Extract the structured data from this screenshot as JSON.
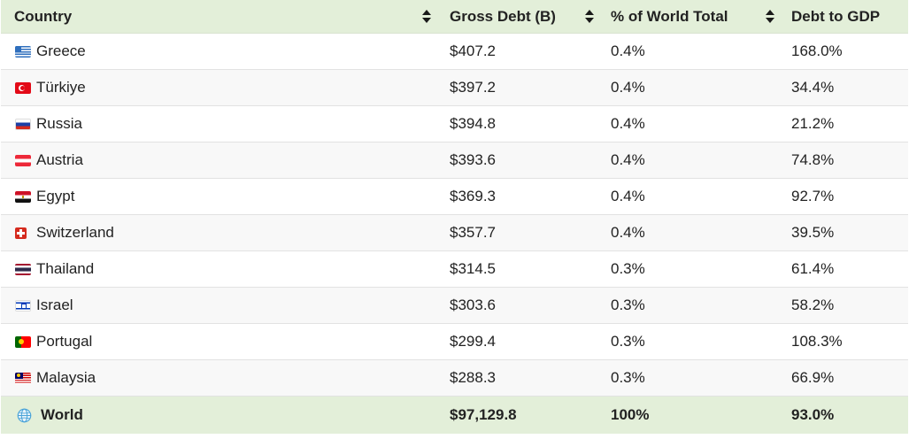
{
  "headers": {
    "country": "Country",
    "gross_debt": "Gross Debt (B)",
    "pct_world": "% of World Total",
    "debt_gdp": "Debt to GDP"
  },
  "rows": [
    {
      "country": "Greece",
      "flag": "greece-flag-icon",
      "gross_debt": "$407.2",
      "pct_world": "0.4%",
      "debt_gdp": "168.0%"
    },
    {
      "country": "Türkiye",
      "flag": "turkey-flag-icon",
      "gross_debt": "$397.2",
      "pct_world": "0.4%",
      "debt_gdp": "34.4%"
    },
    {
      "country": "Russia",
      "flag": "russia-flag-icon",
      "gross_debt": "$394.8",
      "pct_world": "0.4%",
      "debt_gdp": "21.2%"
    },
    {
      "country": "Austria",
      "flag": "austria-flag-icon",
      "gross_debt": "$393.6",
      "pct_world": "0.4%",
      "debt_gdp": "74.8%"
    },
    {
      "country": "Egypt",
      "flag": "egypt-flag-icon",
      "gross_debt": "$369.3",
      "pct_world": "0.4%",
      "debt_gdp": "92.7%"
    },
    {
      "country": "Switzerland",
      "flag": "switzerland-flag-icon",
      "gross_debt": "$357.7",
      "pct_world": "0.4%",
      "debt_gdp": "39.5%"
    },
    {
      "country": "Thailand",
      "flag": "thailand-flag-icon",
      "gross_debt": "$314.5",
      "pct_world": "0.3%",
      "debt_gdp": "61.4%"
    },
    {
      "country": "Israel",
      "flag": "israel-flag-icon",
      "gross_debt": "$303.6",
      "pct_world": "0.3%",
      "debt_gdp": "58.2%"
    },
    {
      "country": "Portugal",
      "flag": "portugal-flag-icon",
      "gross_debt": "$299.4",
      "pct_world": "0.3%",
      "debt_gdp": "108.3%"
    },
    {
      "country": "Malaysia",
      "flag": "malaysia-flag-icon",
      "gross_debt": "$288.3",
      "pct_world": "0.3%",
      "debt_gdp": "66.9%"
    }
  ],
  "total": {
    "country": "World",
    "icon": "globe-icon",
    "gross_debt": "$97,129.8",
    "pct_world": "100%",
    "debt_gdp": "93.0%"
  },
  "colors": {
    "header_bg": "#e3efd9",
    "total_bg": "#e3efd9",
    "stripe_bg": "#f8f8f8"
  }
}
